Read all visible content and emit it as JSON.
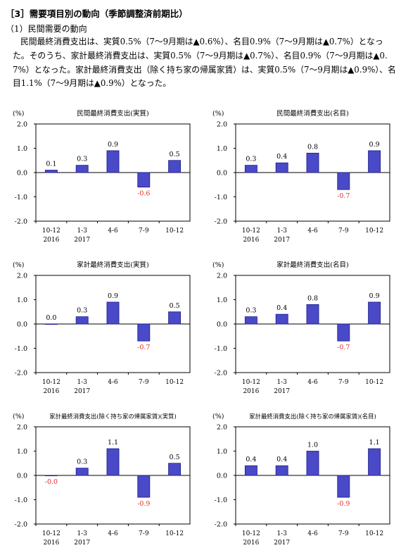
{
  "header": {
    "title": "［3］需要項目別の動向（季節調整済前期比）",
    "subtitle": "（1）民間需要の動向",
    "paragraph": "民間最終消費支出は、実質0.5%（7～9月期は▲0.6%）、名目0.9%（7～9月期は▲0.7%）となった。そのうち、家計最終消費支出は、実質0.5%（7～9月期は▲0.7%）、名目0.9%（7～9月期は▲0.7%）となった。家計最終消費支出（除く持ち家の帰属家賃）は、実質0.5%（7～9月期は▲0.9%）、名目1.1%（7～9月期は▲0.9%）となった。"
  },
  "colors": {
    "bar": "#4a4ac8",
    "bar_edge": "#1a1a8a",
    "negative_label": "#e03030",
    "axis": "#000000"
  },
  "chart_data": [
    {
      "type": "bar",
      "title": "民間最終消費支出(実質)",
      "ylabel": "(%)",
      "ylim": [
        -2.0,
        2.0
      ],
      "yticks": [
        "2.0",
        "1.0",
        "0.0",
        "-1.0",
        "-2.0"
      ],
      "categories": [
        "10-12",
        "1-3",
        "4-6",
        "7-9",
        "10-12"
      ],
      "year_labels": [
        "2016",
        "2017",
        "",
        "",
        ""
      ],
      "values": [
        0.1,
        0.3,
        0.9,
        -0.6,
        0.5
      ],
      "data_labels": [
        "0.1",
        "0.3",
        "0.9",
        "-0.6",
        "0.5"
      ]
    },
    {
      "type": "bar",
      "title": "民間最終消費支出(名目)",
      "ylabel": "(%)",
      "ylim": [
        -2.0,
        2.0
      ],
      "yticks": [
        "2.0",
        "1.0",
        "0.0",
        "-1.0",
        "-2.0"
      ],
      "categories": [
        "10-12",
        "1-3",
        "4-6",
        "7-9",
        "10-12"
      ],
      "year_labels": [
        "2016",
        "2017",
        "",
        "",
        ""
      ],
      "values": [
        0.3,
        0.4,
        0.8,
        -0.7,
        0.9
      ],
      "data_labels": [
        "0.3",
        "0.4",
        "0.8",
        "-0.7",
        "0.9"
      ]
    },
    {
      "type": "bar",
      "title": "家計最終消費支出(実質)",
      "ylabel": "(%)",
      "ylim": [
        -2.0,
        2.0
      ],
      "yticks": [
        "2.0",
        "1.0",
        "0.0",
        "-1.0",
        "-2.0"
      ],
      "categories": [
        "10-12",
        "1-3",
        "4-6",
        "7-9",
        "10-12"
      ],
      "year_labels": [
        "2016",
        "2017",
        "",
        "",
        ""
      ],
      "values": [
        0.0,
        0.3,
        0.9,
        -0.7,
        0.5
      ],
      "data_labels": [
        "0.0",
        "0.3",
        "0.9",
        "-0.7",
        "0.5"
      ]
    },
    {
      "type": "bar",
      "title": "家計最終消費支出(名目)",
      "ylabel": "(%)",
      "ylim": [
        -2.0,
        2.0
      ],
      "yticks": [
        "2.0",
        "1.0",
        "0.0",
        "-1.0",
        "-2.0"
      ],
      "categories": [
        "10-12",
        "1-3",
        "4-6",
        "7-9",
        "10-12"
      ],
      "year_labels": [
        "2016",
        "2017",
        "",
        "",
        ""
      ],
      "values": [
        0.3,
        0.4,
        0.8,
        -0.7,
        0.9
      ],
      "data_labels": [
        "0.3",
        "0.4",
        "0.8",
        "-0.7",
        "0.9"
      ]
    },
    {
      "type": "bar",
      "title": "家計最終消費支出(除く持ち家の帰属家賃)(実質)",
      "ylabel": "(%)",
      "ylim": [
        -2.0,
        2.0
      ],
      "yticks": [
        "2.0",
        "1.0",
        "0.0",
        "-1.0",
        "-2.0"
      ],
      "categories": [
        "10-12",
        "1-3",
        "4-6",
        "7-9",
        "10-12"
      ],
      "year_labels": [
        "2016",
        "2017",
        "",
        "",
        ""
      ],
      "values": [
        -0.0,
        0.3,
        1.1,
        -0.9,
        0.5
      ],
      "data_labels": [
        "-0.0",
        "0.3",
        "1.1",
        "-0.9",
        "0.5"
      ]
    },
    {
      "type": "bar",
      "title": "家計最終消費支出(除く持ち家の帰属家賃)(名目)",
      "ylabel": "(%)",
      "ylim": [
        -2.0,
        2.0
      ],
      "yticks": [
        "2.0",
        "1.0",
        "0.0",
        "-1.0",
        "-2.0"
      ],
      "categories": [
        "10-12",
        "1-3",
        "4-6",
        "7-9",
        "10-12"
      ],
      "year_labels": [
        "2016",
        "2017",
        "",
        "",
        ""
      ],
      "values": [
        0.4,
        0.4,
        1.0,
        -0.9,
        1.1
      ],
      "data_labels": [
        "0.4",
        "0.4",
        "1.0",
        "-0.9",
        "1.1"
      ]
    }
  ]
}
